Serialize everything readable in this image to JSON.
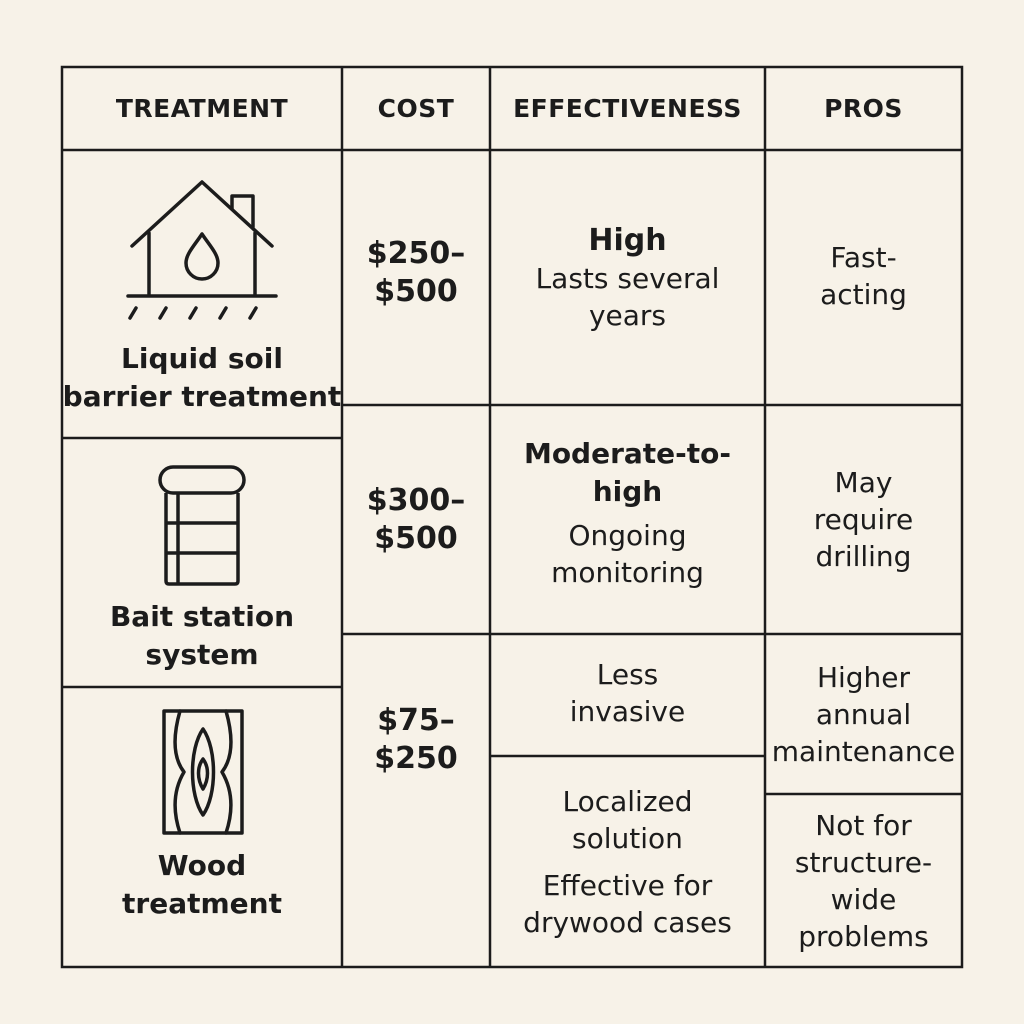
{
  "header": {
    "treatment": "TREATMENT",
    "cost": "COST",
    "effectiveness": "EFFECTIVENESS",
    "pros": "PROS"
  },
  "rows": [
    {
      "icon": "house-droplet-icon",
      "name": "Liquid soil\nbarrier treatment",
      "cost": "$250–\n$500",
      "effectiveness_level": "High",
      "effectiveness_note": "Lasts several\nyears",
      "pros": "Fast-\nacting"
    },
    {
      "icon": "bait-canister-icon",
      "name": "Bait station\nsystem",
      "cost": "$300–\n$500",
      "effectiveness_level": "Moderate-to-high",
      "effectiveness_note": "Ongoing\nmonitoring",
      "pros": "May\nrequire\ndrilling"
    },
    {
      "icon": "wood-grain-icon",
      "name": "Wood\ntreatment",
      "cost": "$75–\n$250",
      "effectiveness_1": "Less\ninvasive",
      "effectiveness_2a": "Localized\nsolution",
      "effectiveness_2b": "Effective for\ndrywood cases",
      "pros_1": "Higher\nannual\nmaintenance",
      "pros_2": "Not for\nstructure-\nwide\nproblems"
    }
  ]
}
